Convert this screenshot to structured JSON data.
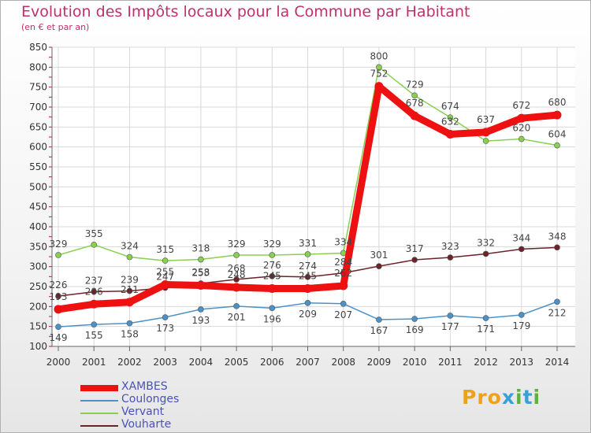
{
  "title": "Evolution des Impôts locaux pour la Commune par Habitant",
  "subtitle": "(en € et par an)",
  "logo": {
    "letters": [
      "P",
      "r",
      "o",
      "x",
      "i",
      "t",
      "i"
    ],
    "colors": [
      "#f0a020",
      "#f0a020",
      "#f0a020",
      "#3aa0d8",
      "#60b040",
      "#3aa0d8",
      "#60b040"
    ]
  },
  "chart_data": {
    "type": "line",
    "x": [
      "2000",
      "2001",
      "2002",
      "2003",
      "2004",
      "2005",
      "2006",
      "2007",
      "2008",
      "2009",
      "2010",
      "2011",
      "2012",
      "2013",
      "2014"
    ],
    "ylim": [
      100,
      850
    ],
    "yticks": [
      "100",
      "150",
      "200",
      "250",
      "300",
      "350",
      "400",
      "450",
      "500",
      "550",
      "600",
      "650",
      "700",
      "750",
      "800",
      "850"
    ],
    "grid": true,
    "legend_position": "bottom-left",
    "series": [
      {
        "name": "Vervant",
        "color": "#88d050",
        "values": [
          329,
          355,
          324,
          315,
          318,
          329,
          329,
          331,
          334,
          800,
          729,
          674,
          615,
          620,
          604
        ]
      },
      {
        "name": "Vouharte",
        "color": "#6b2228",
        "values": [
          226,
          237,
          239,
          247,
          258,
          268,
          276,
          274,
          284,
          301,
          317,
          323,
          332,
          344,
          348
        ]
      },
      {
        "name": "Coulonges",
        "color": "#4a92c8",
        "values": [
          149,
          155,
          158,
          173,
          193,
          201,
          196,
          209,
          207,
          167,
          169,
          177,
          171,
          179,
          212
        ]
      },
      {
        "name": "XAMBES",
        "color": "#ee1111",
        "values": [
          193,
          206,
          211,
          255,
          253,
          248,
          245,
          245,
          252,
          752,
          678,
          632,
          637,
          672,
          680
        ]
      }
    ],
    "data_labels": [
      {
        "series": 0,
        "labels": [
          "329",
          "355",
          "324",
          "315",
          "318",
          "329",
          "329",
          "331",
          "334",
          "800",
          "729",
          "674",
          "",
          "620",
          "604"
        ]
      },
      {
        "series": 1,
        "labels": [
          "226",
          "237",
          "239",
          "247",
          "258",
          "268",
          "276",
          "274",
          "284",
          "301",
          "317",
          "323",
          "332",
          "344",
          "348"
        ]
      },
      {
        "series": 2,
        "labels": [
          "149",
          "155",
          "158",
          "173",
          "193",
          "201",
          "196",
          "209",
          "207",
          "167",
          "169",
          "177",
          "171",
          "179",
          "212"
        ]
      },
      {
        "series": 3,
        "labels": [
          "193",
          "206",
          "211",
          "255",
          "253",
          "248",
          "245",
          "245",
          "252",
          "752",
          "678",
          "632",
          "637",
          "672",
          "680"
        ]
      }
    ]
  },
  "legend": [
    {
      "label": "XAMBES",
      "color": "#ee1111"
    },
    {
      "label": "Coulonges",
      "color": "#4a92c8"
    },
    {
      "label": "Vervant",
      "color": "#88d050"
    },
    {
      "label": "Vouharte",
      "color": "#6b2228"
    }
  ]
}
